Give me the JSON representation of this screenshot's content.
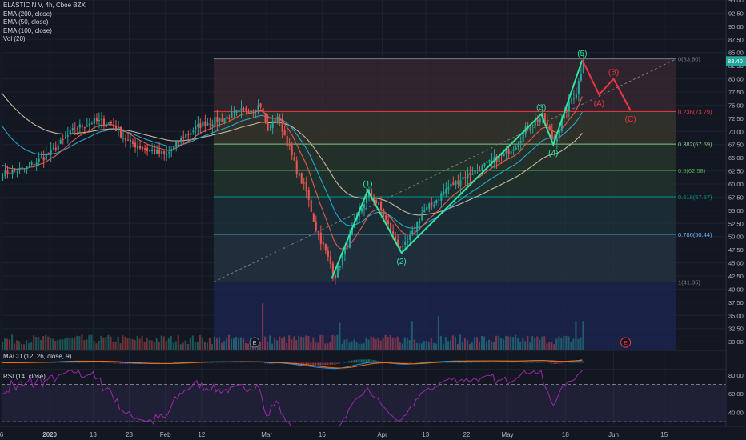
{
  "legend": {
    "title": "ELASTIC N V, 4h, Cboe BZX",
    "ema200": "EMA (200, close)",
    "ema50": "EMA (50, close)",
    "ema100": "EMA (100, close)",
    "vol": "Vol (20)"
  },
  "macd_label": "MACD (12, 26, close, 9)",
  "rsi_label": "RSI (14, close)",
  "colors": {
    "background": "#131722",
    "up": "#26a69a",
    "down": "#ef5350",
    "wave_impulse": "#2ee5a0",
    "wave_correction": "#f23645",
    "ema200": "#c9b99a",
    "ema100": "#26a6d1",
    "ema50": "#e05a4f",
    "rsi": "#9c27b0",
    "price_tag": "#26a69a"
  },
  "chart_data": {
    "type": "candlestick",
    "title": "ELASTIC N V, 4h, Cboe BZX",
    "price_axis": {
      "ylim": [
        28.5,
        95
      ],
      "ticks": [
        "95.00",
        "92.50",
        "90.00",
        "87.50",
        "85.00",
        "82.50",
        "80.00",
        "77.50",
        "75.00",
        "72.50",
        "70.00",
        "67.50",
        "65.00",
        "62.50",
        "60.00",
        "57.50",
        "55.00",
        "52.50",
        "50.00",
        "47.50",
        "45.00",
        "42.50",
        "40.00",
        "37.50",
        "35.00",
        "32.50",
        "30.00"
      ],
      "last_price": "83.40"
    },
    "rsi_axis": {
      "ticks": [
        "80.00",
        "60.00",
        "40.00"
      ],
      "ylim": [
        25,
        85
      ]
    },
    "time_axis": [
      "6",
      "2020",
      "13",
      "23",
      "Feb",
      "12",
      "Mar",
      "16",
      "Apr",
      "13",
      "22",
      "May",
      "18",
      "Jun",
      "15"
    ],
    "time_axis_index": [
      0,
      20,
      38,
      53,
      68,
      83,
      110,
      133,
      158,
      176,
      193,
      210,
      234,
      254,
      275
    ],
    "bars": 300,
    "fib_levels": [
      {
        "ratio": 0,
        "label": "0(83.80)",
        "value": 83.8,
        "color": "#787b86"
      },
      {
        "ratio": 0.236,
        "label": "0.236(73.79)",
        "value": 73.79,
        "color": "#f23645"
      },
      {
        "ratio": 0.382,
        "label": "0.382(67.59)",
        "value": 67.59,
        "color": "#81c784"
      },
      {
        "ratio": 0.5,
        "label": "0.5(62.58)",
        "value": 62.58,
        "color": "#4caf50"
      },
      {
        "ratio": 0.618,
        "label": "0.618(57.57)",
        "value": 57.57,
        "color": "#009688"
      },
      {
        "ratio": 0.786,
        "label": "0.786(50.44)",
        "value": 50.44,
        "color": "#64b5f6"
      },
      {
        "ratio": 1,
        "label": "1(41.35)",
        "value": 41.35,
        "color": "#787b86"
      }
    ],
    "fib_start_index": 88,
    "waves": [
      {
        "label": "(1)",
        "index": 152,
        "value": 58.8
      },
      {
        "label": "(2)",
        "index": 166,
        "value": 46.9
      },
      {
        "label": "(3)",
        "index": 224,
        "value": 73.3
      },
      {
        "label": "(4)",
        "index": 229,
        "value": 67.5
      },
      {
        "label": "(5)",
        "index": 241,
        "value": 83.6
      },
      {
        "label": "(A)",
        "index": 248,
        "value": 77.0
      },
      {
        "label": "(B)",
        "index": 254,
        "value": 80.0
      },
      {
        "label": "(C)",
        "index": 261,
        "value": 74.0
      }
    ],
    "wave_start": {
      "index": 137,
      "value": 42.0
    },
    "earnings_markers": [
      {
        "label": "E",
        "index": 105
      },
      {
        "label": "E",
        "index": 259
      }
    ],
    "series": [
      {
        "name": "EMA (200, close)"
      },
      {
        "name": "EMA (50, close)"
      },
      {
        "name": "EMA (100, close)"
      },
      {
        "name": "Vol (20)"
      },
      {
        "name": "MACD (12, 26, close, 9)"
      },
      {
        "name": "RSI (14, close)"
      }
    ],
    "price_path": [
      [
        0,
        62.0
      ],
      [
        10,
        63.0
      ],
      [
        20,
        66.0
      ],
      [
        30,
        70.5
      ],
      [
        38,
        72.0
      ],
      [
        45,
        71.5
      ],
      [
        52,
        68.0
      ],
      [
        60,
        66.5
      ],
      [
        68,
        65.5
      ],
      [
        75,
        69.0
      ],
      [
        83,
        71.5
      ],
      [
        92,
        72.5
      ],
      [
        100,
        74.0
      ],
      [
        107,
        75.0
      ],
      [
        110,
        70.0
      ],
      [
        114,
        73.0
      ],
      [
        118,
        68.0
      ],
      [
        122,
        62.5
      ],
      [
        126,
        58.5
      ],
      [
        130,
        51.5
      ],
      [
        134,
        47.0
      ],
      [
        138,
        42.5
      ],
      [
        142,
        47.5
      ],
      [
        147,
        53.5
      ],
      [
        152,
        58.5
      ],
      [
        157,
        55.0
      ],
      [
        162,
        50.0
      ],
      [
        166,
        47.5
      ],
      [
        170,
        50.5
      ],
      [
        174,
        54.5
      ],
      [
        178,
        56.0
      ],
      [
        184,
        59.0
      ],
      [
        190,
        61.0
      ],
      [
        196,
        62.5
      ],
      [
        202,
        64.0
      ],
      [
        208,
        65.5
      ],
      [
        213,
        67.5
      ],
      [
        218,
        71.0
      ],
      [
        224,
        72.8
      ],
      [
        229,
        68.0
      ],
      [
        234,
        74.5
      ],
      [
        238,
        77.5
      ],
      [
        241,
        83.4
      ]
    ]
  }
}
